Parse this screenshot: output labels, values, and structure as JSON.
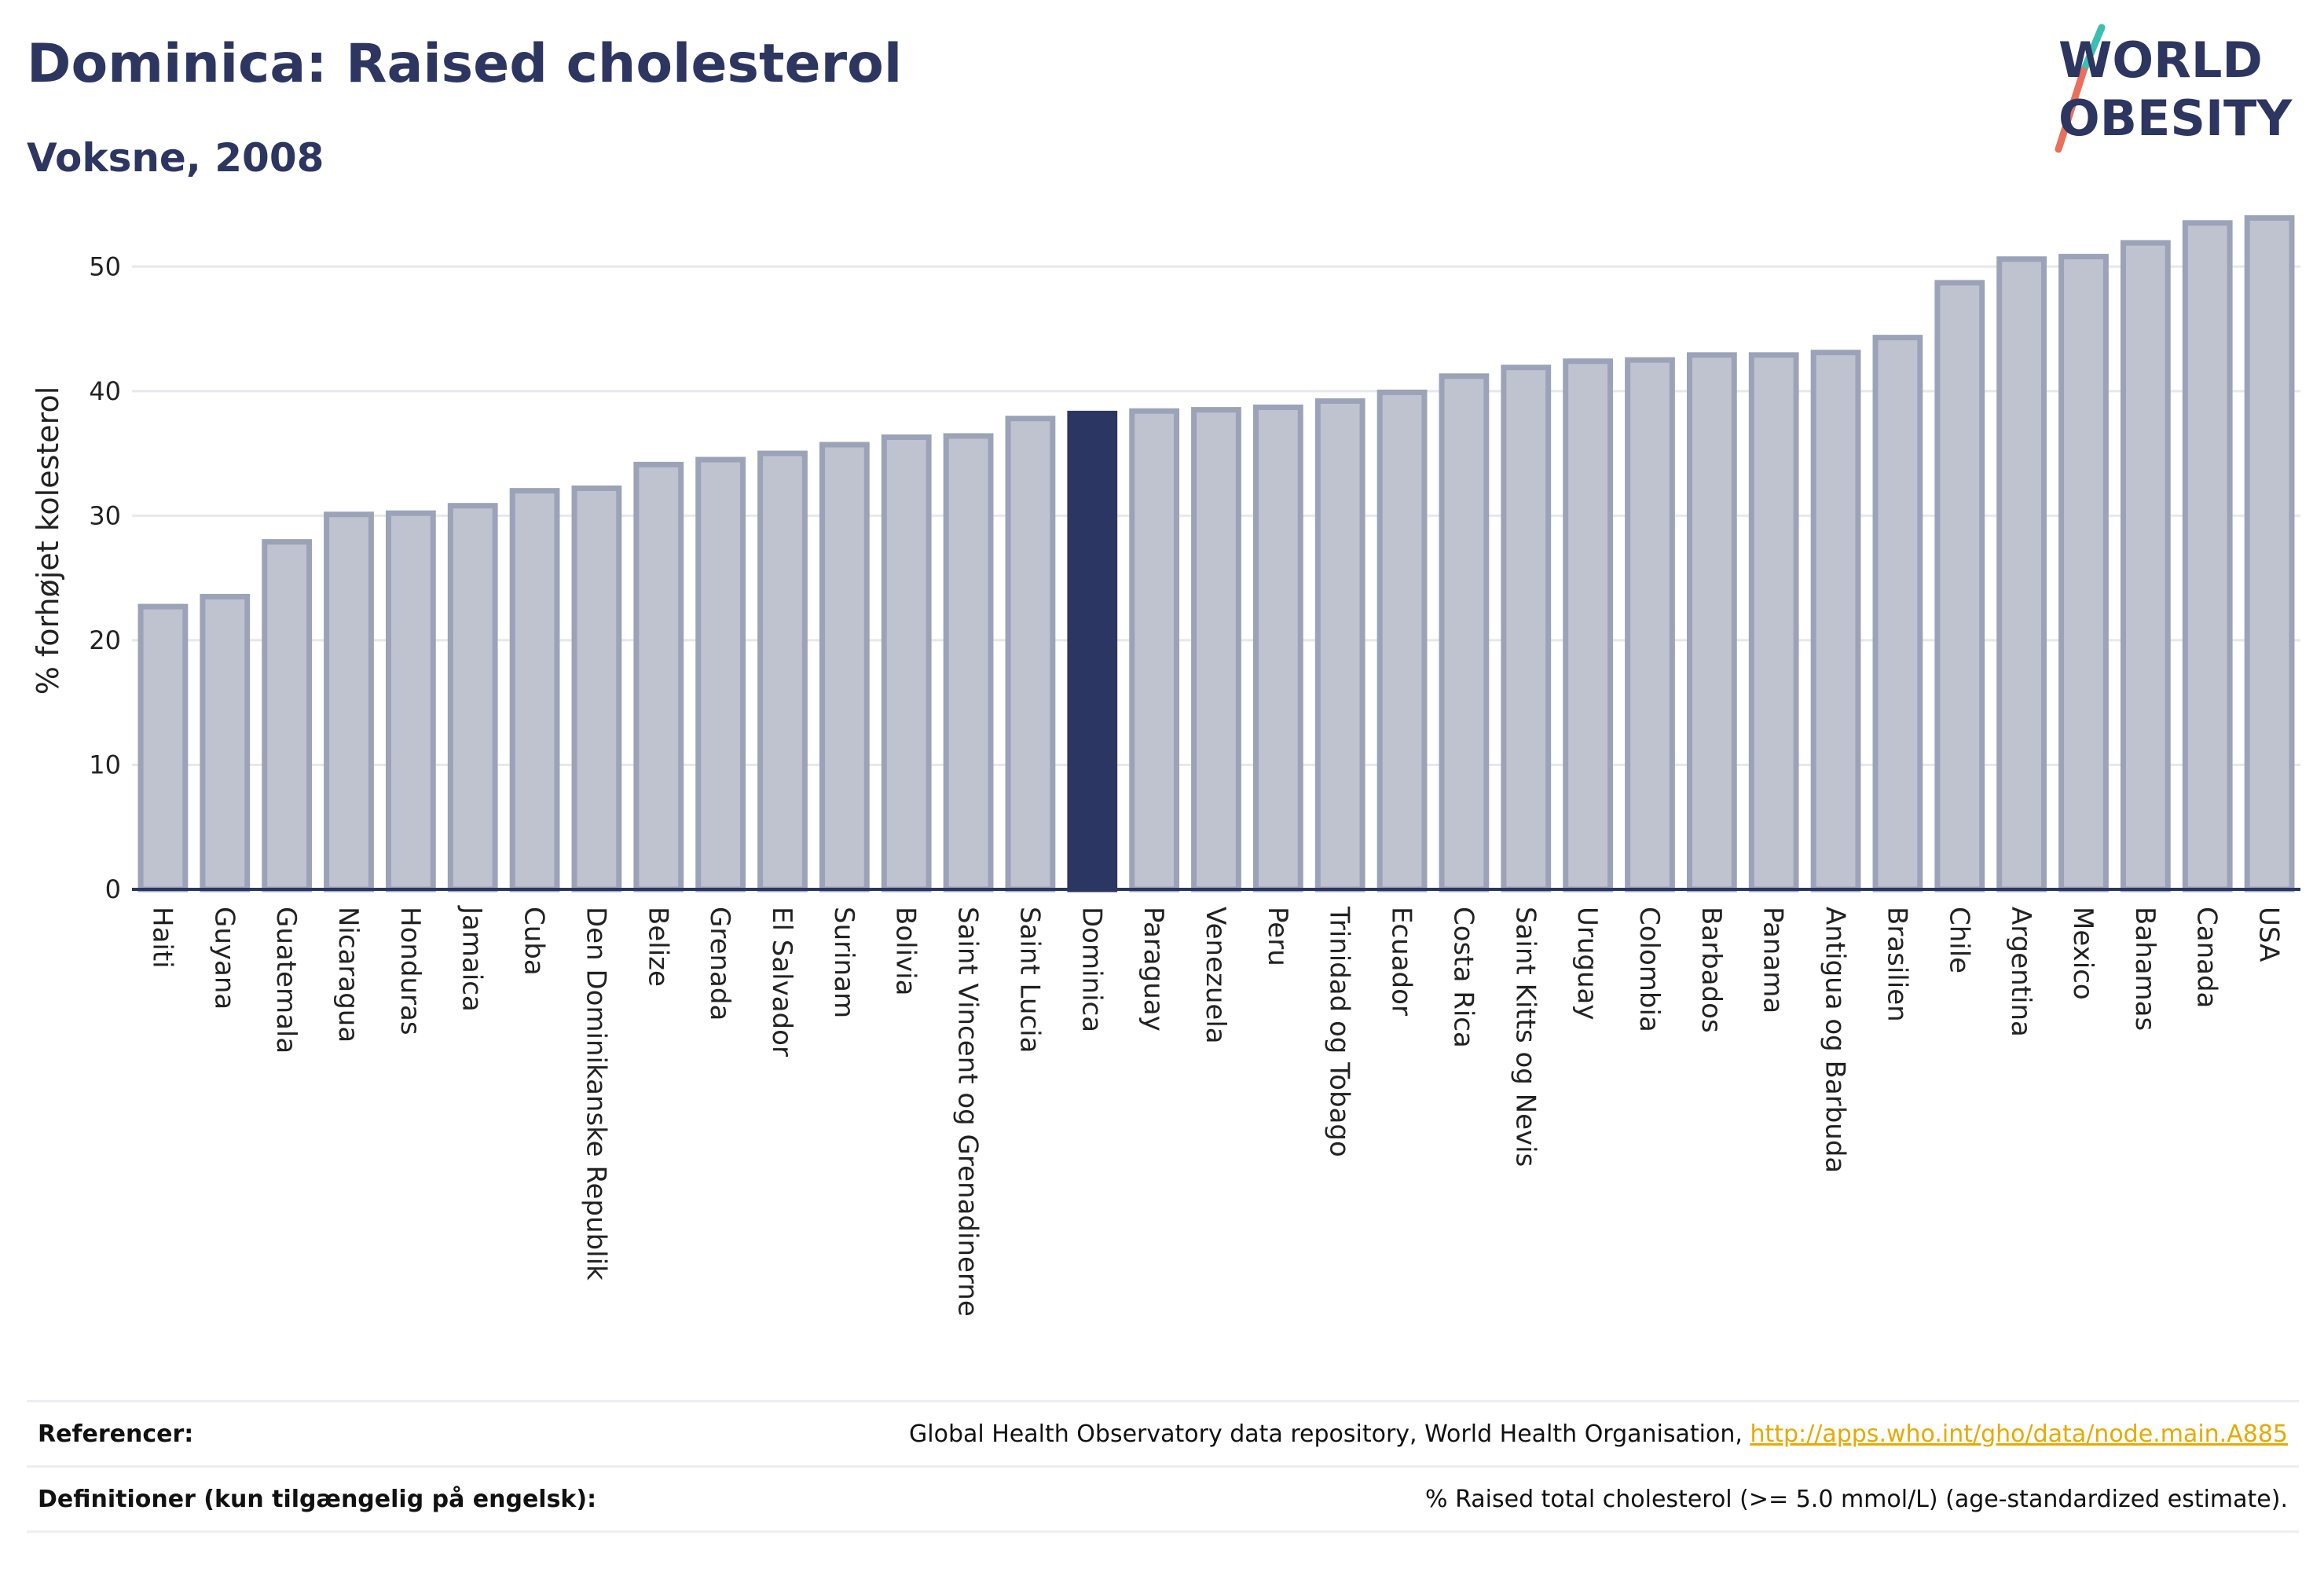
{
  "header": {
    "title": "Dominica: Raised cholesterol",
    "subtitle": "Voksne, 2008"
  },
  "logo": {
    "line1": "WORLD",
    "line2": "OBESITY",
    "colors": {
      "text": "#2d3660",
      "slash_top": "#3bbfb3",
      "slash_bottom": "#e8705d"
    }
  },
  "chart_data": {
    "type": "bar",
    "ylabel": "% forhøjet kolesterol",
    "ylim": [
      0,
      55
    ],
    "yticks": [
      0,
      10,
      20,
      30,
      40,
      50
    ],
    "grid": true,
    "highlight": "Dominica",
    "colors": {
      "bar": "#bfc3d0",
      "bar_border": "#9ca2b8",
      "highlight": "#2b3662",
      "grid": "#e6e8ee",
      "axis": "#2d3660"
    },
    "categories": [
      "Haiti",
      "Guyana",
      "Guatemala",
      "Nicaragua",
      "Honduras",
      "Jamaica",
      "Cuba",
      "Den Dominikanske Republik",
      "Belize",
      "Grenada",
      "El Salvador",
      "Surinam",
      "Bolivia",
      "Saint Vincent og Grenadinerne",
      "Saint Lucia",
      "Dominica",
      "Paraguay",
      "Venezuela",
      "Peru",
      "Trinidad og Tobago",
      "Ecuador",
      "Costa Rica",
      "Saint Kitts og Nevis",
      "Uruguay",
      "Colombia",
      "Barbados",
      "Panama",
      "Antigua og Barbuda",
      "Brasilien",
      "Chile",
      "Argentina",
      "Mexico",
      "Bahamas",
      "Canada",
      "USA"
    ],
    "values": [
      22.7,
      23.5,
      27.9,
      30.1,
      30.2,
      30.8,
      32.0,
      32.2,
      34.1,
      34.5,
      35.0,
      35.7,
      36.3,
      36.4,
      37.8,
      38.2,
      38.4,
      38.5,
      38.7,
      39.2,
      39.9,
      41.2,
      41.9,
      42.4,
      42.5,
      42.9,
      42.9,
      43.1,
      44.3,
      48.7,
      50.6,
      50.8,
      51.9,
      53.5,
      53.9
    ]
  },
  "footer": {
    "references_label": "Referencer:",
    "references_text": "Global Health Observatory data repository, World Health Organisation, ",
    "references_link": "http://apps.who.int/gho/data/node.main.A885",
    "definitions_label": "Definitioner (kun tilgængelig på engelsk):",
    "definitions_text": "% Raised total cholesterol (>= 5.0 mmol/L) (age-standardized estimate)."
  }
}
